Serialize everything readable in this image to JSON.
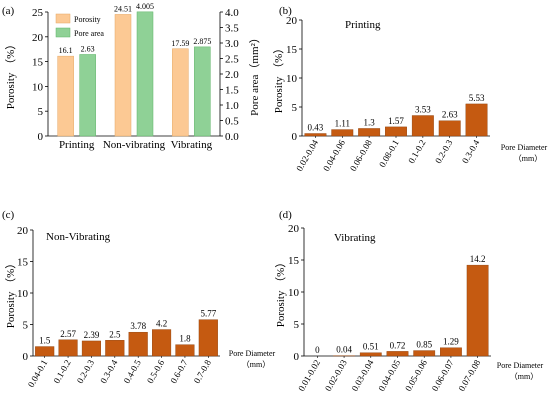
{
  "colors": {
    "porosity_fill": "#fcc994",
    "porosity_stroke": "#e6a865",
    "pore_area_fill": "#8fd196",
    "pore_area_stroke": "#5fb368",
    "bar_fill": "#c55a11",
    "bar_stroke": "#8a3d08",
    "axis": "#000000"
  },
  "chart_data": [
    {
      "panel": "(a)",
      "type": "bar",
      "categories": [
        "Printing",
        "Non-vibrating",
        "Vibrating"
      ],
      "series": [
        {
          "name": "Porosity",
          "axis": "left",
          "values": [
            16.1,
            24.51,
            17.59
          ],
          "labels": [
            "16.1",
            "24.51",
            "17.59"
          ]
        },
        {
          "name": "Pore area",
          "axis": "right",
          "values": [
            2.63,
            4.005,
            2.875
          ],
          "labels": [
            "2.63",
            "4.005",
            "2.875"
          ]
        }
      ],
      "ylabel": "Porosity （%）",
      "ylim": [
        0,
        25
      ],
      "yticks": [
        "0",
        "5",
        "10",
        "15",
        "20",
        "25"
      ],
      "y2label": "Pore area（mm²）",
      "y2lim": [
        0,
        4
      ],
      "y2ticks": [
        "0.0",
        "0.5",
        "1.0",
        "1.5",
        "2.0",
        "2.5",
        "3.0",
        "3.5",
        "4.0"
      ],
      "legend_position": "top-left"
    },
    {
      "panel": "(b)",
      "type": "bar",
      "title": "Printing",
      "categories": [
        "0.02-0.04",
        "0.04-0.06",
        "0.06-0.08",
        "0.08-0.1",
        "0.1-0.2",
        "0.2-0.3",
        "0.3-0.4"
      ],
      "values": [
        0.43,
        1.11,
        1.3,
        1.57,
        3.53,
        2.63,
        5.53
      ],
      "labels": [
        "0.43",
        "1.11",
        "1.3",
        "1.57",
        "3.53",
        "2.63",
        "5.53"
      ],
      "ylabel": "Porosity （%）",
      "xlabel_line1": "Pore Diameter",
      "xlabel_line2": "（mm）",
      "ylim": [
        0,
        20
      ],
      "yticks": [
        "0",
        "5",
        "10",
        "15",
        "20"
      ]
    },
    {
      "panel": "(c)",
      "type": "bar",
      "title": "Non-Vibrating",
      "categories": [
        "0.04-0.1",
        "0.1-0.2",
        "0.2-0.3",
        "0.3-0.4",
        "0.4-0.5",
        "0.5-0.6",
        "0.6-0.7",
        "0.7-0.8"
      ],
      "values": [
        1.5,
        2.57,
        2.39,
        2.5,
        3.78,
        4.2,
        1.8,
        5.77
      ],
      "labels": [
        "1.5",
        "2.57",
        "2.39",
        "2.5",
        "3.78",
        "4.2",
        "1.8",
        "5.77"
      ],
      "ylabel": "Porosity （%）",
      "xlabel_line1": "Pore Diameter",
      "xlabel_line2": "（mm）",
      "ylim": [
        0,
        20
      ],
      "yticks": [
        "0",
        "5",
        "10",
        "15",
        "20"
      ]
    },
    {
      "panel": "(d)",
      "type": "bar",
      "title": "Vibrating",
      "categories": [
        "0.01-0.02",
        "0.02-0.03",
        "0.03-0.04",
        "0.04-0.05",
        "0.05-0.06",
        "0.06-0.07",
        "0.07-0.08"
      ],
      "values": [
        0,
        0.04,
        0.51,
        0.72,
        0.85,
        1.29,
        14.2
      ],
      "labels": [
        "0",
        "0.04",
        "0.51",
        "0.72",
        "0.85",
        "1.29",
        "14.2"
      ],
      "ylabel": "Porosity （%）",
      "xlabel_line1": "Pore Diameter",
      "xlabel_line2": "（mm）",
      "ylim": [
        0,
        20
      ],
      "yticks": [
        "0",
        "5",
        "10",
        "15",
        "20"
      ]
    }
  ]
}
